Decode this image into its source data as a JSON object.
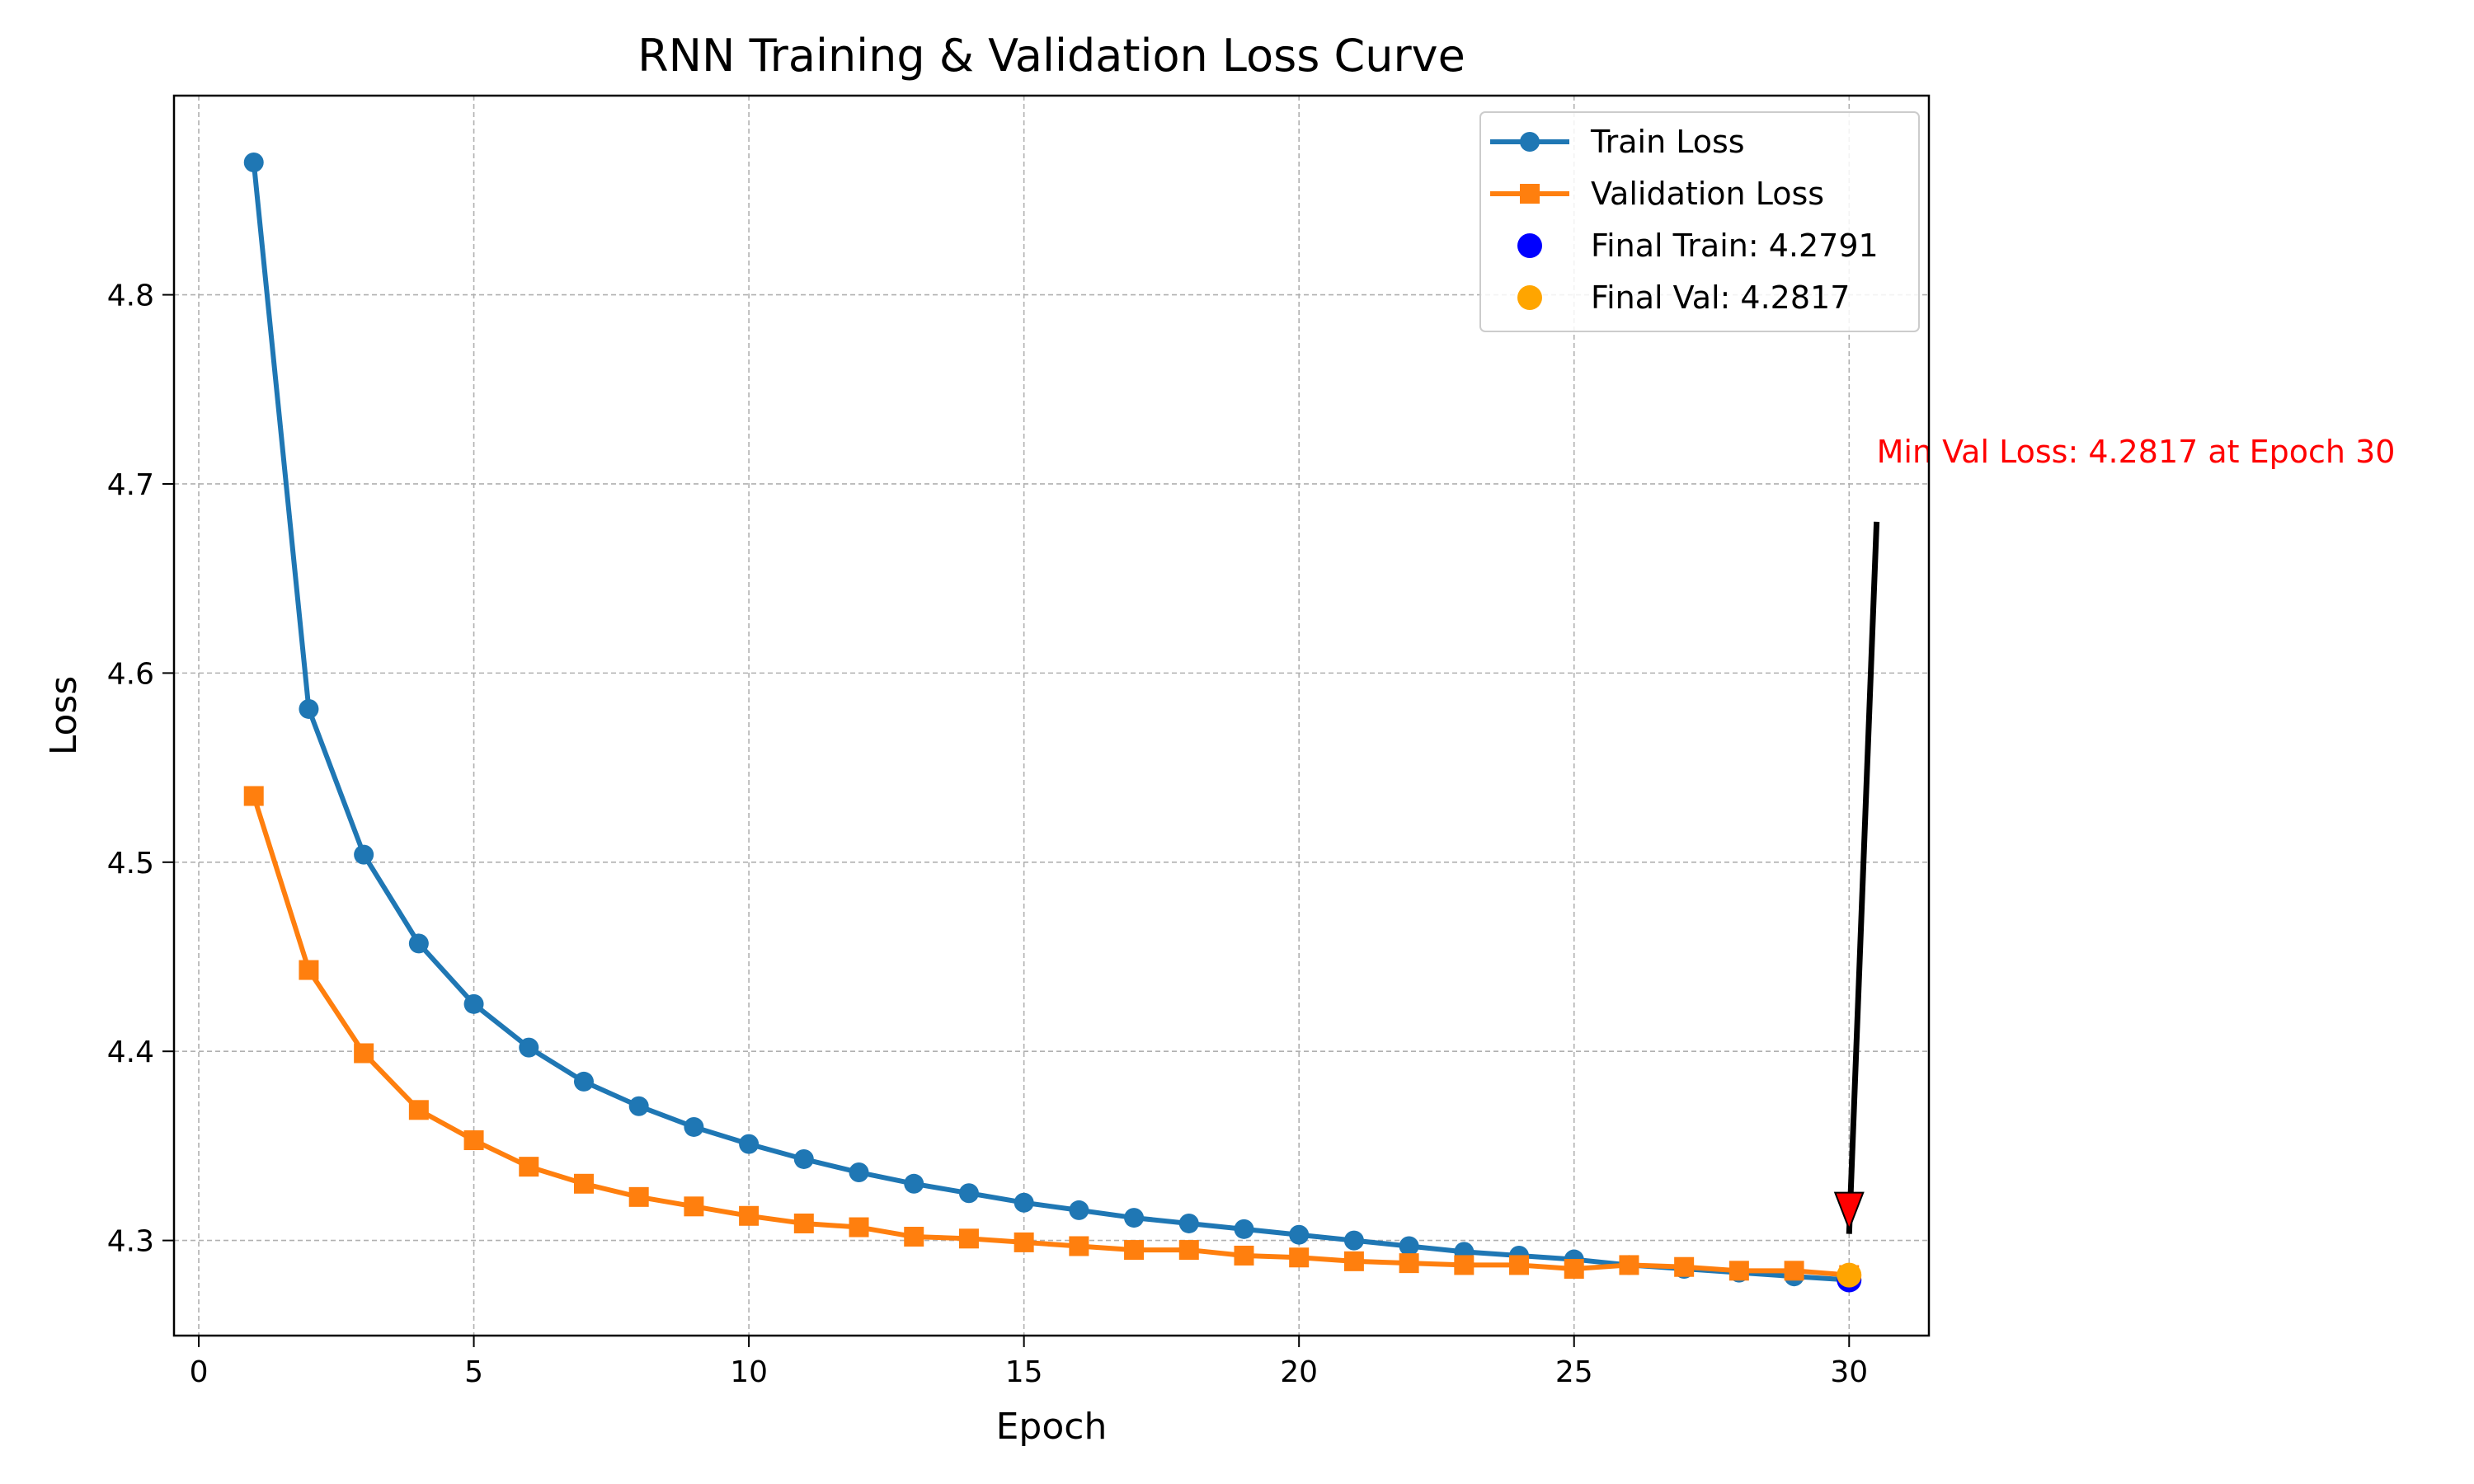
{
  "chart_data": {
    "type": "line",
    "title": "RNN Training & Validation Loss Curve",
    "xlabel": "Epoch",
    "ylabel": "Loss",
    "xlim": [
      -0.45,
      31.45
    ],
    "ylim": [
      4.2497,
      4.9053
    ],
    "xticks": [
      0,
      5,
      10,
      15,
      20,
      25,
      30
    ],
    "yticks": [
      4.3,
      4.4,
      4.5,
      4.6,
      4.7,
      4.8
    ],
    "grid": true,
    "legend_position": "top-right",
    "x": [
      1,
      2,
      3,
      4,
      5,
      6,
      7,
      8,
      9,
      10,
      11,
      12,
      13,
      14,
      15,
      16,
      17,
      18,
      19,
      20,
      21,
      22,
      23,
      24,
      25,
      26,
      27,
      28,
      29,
      30
    ],
    "series": [
      {
        "name": "Train Loss",
        "color": "#1f77b4",
        "marker": "circle",
        "values": [
          4.87,
          4.581,
          4.504,
          4.457,
          4.425,
          4.402,
          4.384,
          4.371,
          4.36,
          4.351,
          4.343,
          4.336,
          4.33,
          4.325,
          4.32,
          4.316,
          4.312,
          4.309,
          4.306,
          4.303,
          4.3,
          4.297,
          4.294,
          4.292,
          4.29,
          4.287,
          4.285,
          4.283,
          4.281,
          4.2791
        ]
      },
      {
        "name": "Validation Loss",
        "color": "#ff7f0e",
        "marker": "square",
        "values": [
          4.535,
          4.443,
          4.399,
          4.369,
          4.353,
          4.339,
          4.33,
          4.323,
          4.318,
          4.313,
          4.309,
          4.307,
          4.302,
          4.301,
          4.299,
          4.297,
          4.295,
          4.295,
          4.292,
          4.291,
          4.289,
          4.288,
          4.287,
          4.287,
          4.285,
          4.287,
          4.286,
          4.284,
          4.284,
          4.2817
        ]
      }
    ],
    "highlights": [
      {
        "name": "Final Train: 4.2791",
        "x": 30,
        "y": 4.2791,
        "color": "#0000ff"
      },
      {
        "name": "Final Val: 4.2817",
        "x": 30,
        "y": 4.2817,
        "color": "#ffa500"
      }
    ],
    "annotation": {
      "text": "Min Val Loss: 4.2817 at Epoch 30",
      "color": "#ff0000",
      "point": {
        "x": 30,
        "y": 4.2817
      },
      "text_anchor": {
        "x": 30.5,
        "y": 4.68
      },
      "arrow_color": "#000000",
      "arrowhead_color": "#ff0000"
    }
  }
}
